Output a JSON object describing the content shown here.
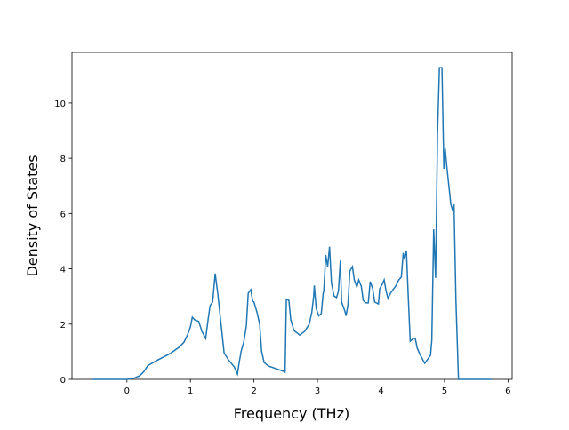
{
  "chart_data": {
    "type": "line",
    "x_label": "Frequency (THz)",
    "y_label": "Density of States",
    "xlim": [
      -0.865,
      6.065
    ],
    "ylim": [
      0,
      11.83
    ],
    "xticks": [
      0,
      1,
      2,
      3,
      4,
      5,
      6
    ],
    "yticks": [
      0,
      2,
      4,
      6,
      8,
      10
    ],
    "series": [
      {
        "color": "#1f77b4",
        "x": [
          -0.55,
          0,
          0.1,
          0.2,
          0.26,
          0.33,
          0.47,
          0.68,
          0.82,
          0.9,
          0.96,
          1.0,
          1.03,
          1.07,
          1.13,
          1.18,
          1.24,
          1.28,
          1.31,
          1.35,
          1.39,
          1.43,
          1.49,
          1.53,
          1.6,
          1.69,
          1.74,
          1.77,
          1.8,
          1.84,
          1.88,
          1.91,
          1.95,
          1.98,
          2.0,
          2.05,
          2.09,
          2.12,
          2.16,
          2.23,
          2.47,
          2.49,
          2.51,
          2.55,
          2.58,
          2.63,
          2.72,
          2.8,
          2.87,
          2.91,
          2.94,
          2.95,
          2.98,
          3.02,
          3.06,
          3.09,
          3.1,
          3.13,
          3.16,
          3.19,
          3.22,
          3.26,
          3.3,
          3.33,
          3.36,
          3.38,
          3.43,
          3.45,
          3.48,
          3.51,
          3.55,
          3.58,
          3.62,
          3.65,
          3.69,
          3.72,
          3.76,
          3.8,
          3.83,
          3.87,
          3.9,
          3.96,
          3.98,
          4.02,
          4.05,
          4.08,
          4.11,
          4.15,
          4.19,
          4.23,
          4.28,
          4.32,
          4.35,
          4.37,
          4.4,
          4.43,
          4.46,
          4.51,
          4.54,
          4.57,
          4.62,
          4.69,
          4.78,
          4.8,
          4.83,
          4.86,
          4.89,
          4.92,
          4.96,
          4.99,
          5.01,
          5.04,
          5.1,
          5.13,
          5.15,
          5.18,
          5.22,
          5.74
        ],
        "values": [
          0,
          0,
          0.03,
          0.13,
          0.26,
          0.5,
          0.68,
          0.93,
          1.16,
          1.35,
          1.64,
          1.9,
          2.25,
          2.15,
          2.1,
          1.74,
          1.48,
          2.19,
          2.67,
          2.8,
          3.83,
          3.12,
          1.83,
          0.96,
          0.7,
          0.45,
          0.19,
          0.64,
          1.03,
          1.35,
          1.93,
          3.12,
          3.25,
          2.83,
          2.8,
          2.41,
          2.0,
          1.03,
          0.61,
          0.48,
          0.29,
          0.26,
          2.9,
          2.86,
          2.15,
          1.77,
          1.6,
          1.74,
          2.0,
          2.41,
          3.0,
          3.4,
          2.57,
          2.3,
          2.38,
          3.12,
          3.2,
          4.5,
          4.08,
          4.8,
          3.5,
          3.02,
          2.96,
          3.2,
          4.3,
          2.8,
          2.48,
          2.3,
          2.7,
          3.92,
          4.08,
          3.6,
          3.34,
          3.6,
          3.37,
          2.86,
          2.77,
          2.77,
          3.54,
          3.28,
          2.8,
          2.73,
          3.28,
          3.44,
          3.6,
          3.2,
          2.93,
          3.12,
          3.25,
          3.37,
          3.6,
          3.7,
          4.57,
          4.37,
          4.66,
          2.96,
          1.38,
          1.48,
          1.48,
          1.13,
          0.87,
          0.58,
          0.87,
          1.41,
          5.43,
          3.67,
          8.9,
          11.28,
          11.28,
          7.62,
          8.36,
          7.62,
          6.33,
          6.1,
          6.33,
          2.86,
          0,
          0
        ]
      }
    ]
  }
}
